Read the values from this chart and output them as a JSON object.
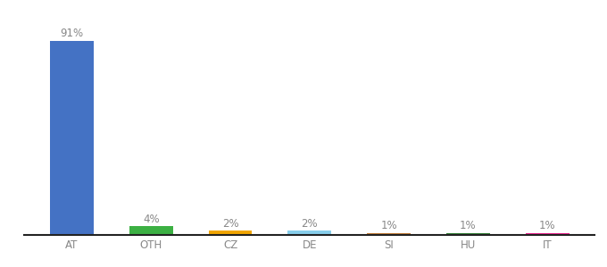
{
  "categories": [
    "AT",
    "OTH",
    "CZ",
    "DE",
    "SI",
    "HU",
    "IT"
  ],
  "values": [
    91,
    4,
    2,
    2,
    1,
    1,
    1
  ],
  "bar_colors": [
    "#4472c4",
    "#3cb043",
    "#f0a500",
    "#87ceeb",
    "#c07830",
    "#2e7d32",
    "#e91e8c"
  ],
  "labels": [
    "91%",
    "4%",
    "2%",
    "2%",
    "1%",
    "1%",
    "1%"
  ],
  "ylim": [
    0,
    100
  ],
  "background_color": "#ffffff",
  "label_fontsize": 8.5,
  "tick_fontsize": 8.5,
  "bar_width": 0.55,
  "label_color": "#888888",
  "tick_color": "#888888",
  "spine_color": "#222222"
}
